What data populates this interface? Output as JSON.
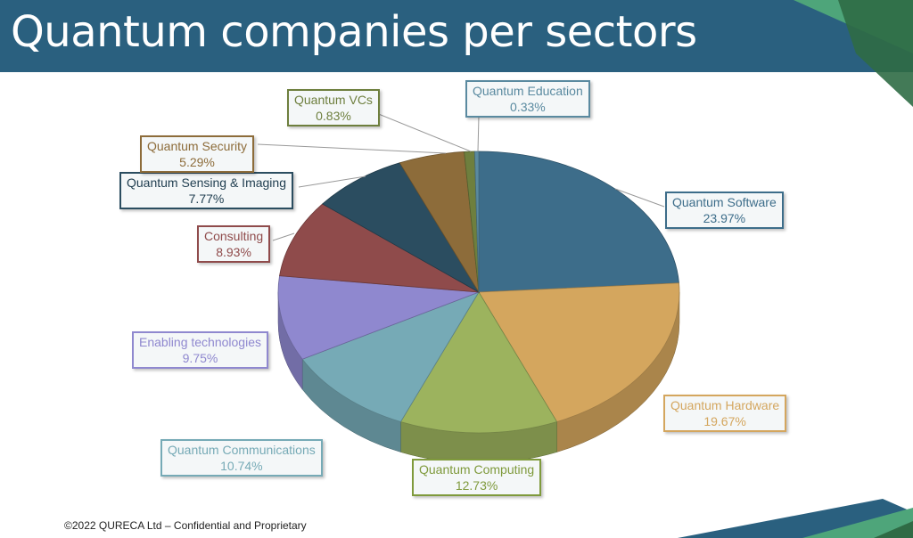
{
  "title": "Quantum companies per sectors",
  "footer": "©2022 QURECA Ltd – Confidential and Proprietary",
  "chart_data": {
    "type": "pie",
    "style": "3d",
    "title": "Quantum companies per sectors",
    "slices": [
      {
        "label": "Quantum Software",
        "value": 23.97,
        "pct": "23.97%",
        "color": "#3d6d8a"
      },
      {
        "label": "Quantum Hardware",
        "value": 19.67,
        "pct": "19.67%",
        "color": "#d4a65e"
      },
      {
        "label": "Quantum Computing",
        "value": 12.73,
        "pct": "12.73%",
        "color": "#9cb35e"
      },
      {
        "label": "Quantum Communications",
        "value": 10.74,
        "pct": "10.74%",
        "color": "#76aab6"
      },
      {
        "label": "Enabling technologies",
        "value": 9.75,
        "pct": "9.75%",
        "color": "#8f88cf"
      },
      {
        "label": "Consulting",
        "value": 8.93,
        "pct": "8.93%",
        "color": "#8f4b4b"
      },
      {
        "label": "Quantum Sensing & Imaging",
        "value": 7.77,
        "pct": "7.77%",
        "color": "#2b4d60"
      },
      {
        "label": "Quantum Security",
        "value": 5.29,
        "pct": "5.29%",
        "color": "#8d6c3a"
      },
      {
        "label": "Quantum VCs",
        "value": 0.83,
        "pct": "0.83%",
        "color": "#6e7f3e"
      },
      {
        "label": "Quantum Education",
        "value": 0.33,
        "pct": "0.33%",
        "color": "#5a8aa0"
      }
    ]
  }
}
